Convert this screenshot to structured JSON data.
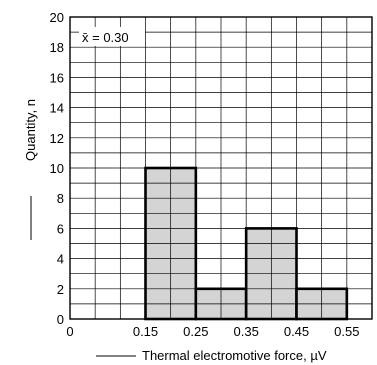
{
  "chart_data": {
    "type": "bar",
    "title": "",
    "annotation": "x̄ = 0.30",
    "xlabel": "Thermal electromotive force, µV",
    "ylabel": "Quantity, n",
    "xlim": [
      0,
      0.6
    ],
    "ylim": [
      0,
      20
    ],
    "x_ticks": [
      {
        "value": 0,
        "label": "0"
      },
      {
        "value": 0.15,
        "label": "0.15"
      },
      {
        "value": 0.25,
        "label": "0.25"
      },
      {
        "value": 0.35,
        "label": "0.35"
      },
      {
        "value": 0.45,
        "label": "0.45"
      },
      {
        "value": 0.55,
        "label": "0.55"
      }
    ],
    "y_ticks": [
      0,
      2,
      4,
      6,
      8,
      10,
      12,
      14,
      16,
      18,
      20
    ],
    "grid": true,
    "bins": [
      {
        "start": 0.15,
        "end": 0.25,
        "value": 10
      },
      {
        "start": 0.25,
        "end": 0.35,
        "value": 2
      },
      {
        "start": 0.35,
        "end": 0.45,
        "value": 6
      },
      {
        "start": 0.45,
        "end": 0.55,
        "value": 2
      }
    ],
    "colors": {
      "bar_fill": "#d4d4d4",
      "bar_edge": "#000000",
      "grid": "#000000"
    }
  }
}
